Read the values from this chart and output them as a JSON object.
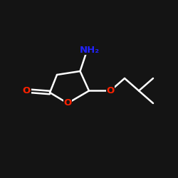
{
  "background_color": "#1a1a1a",
  "atom_colors": {
    "O": "#ff2200",
    "N": "#2222ff",
    "C": "black"
  },
  "figsize": [
    2.5,
    2.5
  ],
  "dpi": 100,
  "bg_fill": "#141414",
  "lw": 1.8,
  "fontsize": 9.5,
  "bond_color": "white"
}
